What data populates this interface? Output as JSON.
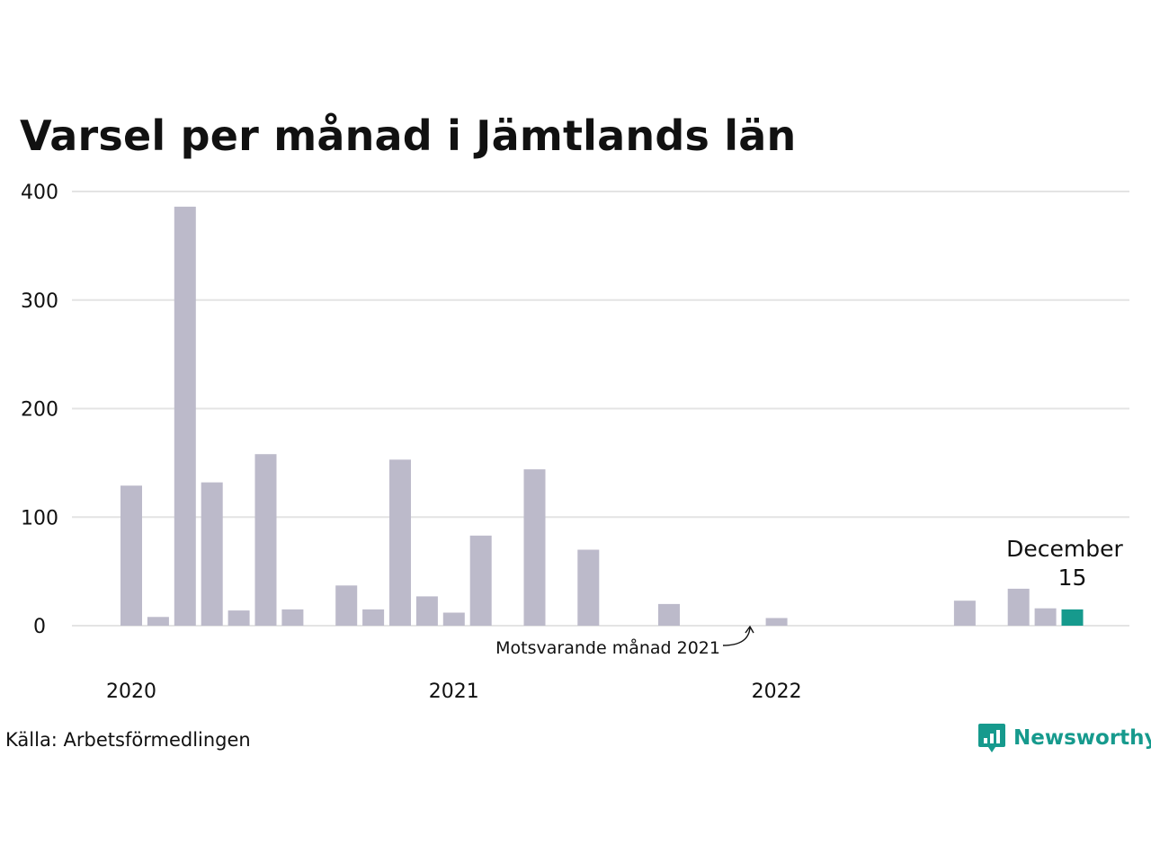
{
  "chart_data": {
    "type": "bar",
    "title": "Varsel per månad i Jämtlands län",
    "xlabel": "",
    "ylabel": "",
    "ylim": [
      0,
      400
    ],
    "yticks": [
      0,
      100,
      200,
      300,
      400
    ],
    "xticks": [
      {
        "label": "2020",
        "month": "2020-01"
      },
      {
        "label": "2021",
        "month": "2021-01"
      },
      {
        "label": "2022",
        "month": "2022-01"
      }
    ],
    "grid": true,
    "months": [
      "2020-01",
      "2020-02",
      "2020-03",
      "2020-04",
      "2020-05",
      "2020-06",
      "2020-07",
      "2020-08",
      "2020-09",
      "2020-10",
      "2020-11",
      "2020-12",
      "2021-01",
      "2021-02",
      "2021-03",
      "2021-04",
      "2021-05",
      "2021-06",
      "2021-07",
      "2021-08",
      "2021-09",
      "2021-10",
      "2021-11",
      "2021-12",
      "2022-01",
      "2022-02",
      "2022-03",
      "2022-04",
      "2022-05",
      "2022-06",
      "2022-07",
      "2022-08",
      "2022-09",
      "2022-10",
      "2022-11",
      "2022-12"
    ],
    "values": [
      129,
      8,
      386,
      132,
      14,
      158,
      15,
      0,
      37,
      15,
      153,
      27,
      12,
      83,
      0,
      144,
      0,
      70,
      0,
      0,
      20,
      0,
      0,
      0,
      7,
      0,
      0,
      0,
      0,
      0,
      0,
      23,
      0,
      34,
      16,
      15
    ],
    "colors": {
      "default": "#bcbaca",
      "comparison": "#3f3f3f",
      "current": "#169a8d",
      "grid": "#e4e4e4",
      "text": "#111111"
    },
    "highlight": {
      "current_month": "2022-12",
      "comparison_month": "2021-12"
    },
    "annotations": {
      "current_label": "December",
      "current_value": "15",
      "comparison_label": "Motsvarande månad 2021"
    }
  },
  "footer": {
    "source": "Källa: Arbetsförmedlingen",
    "brand": "Newsworthy",
    "brand_icon": "newsworthy-logo-icon"
  }
}
